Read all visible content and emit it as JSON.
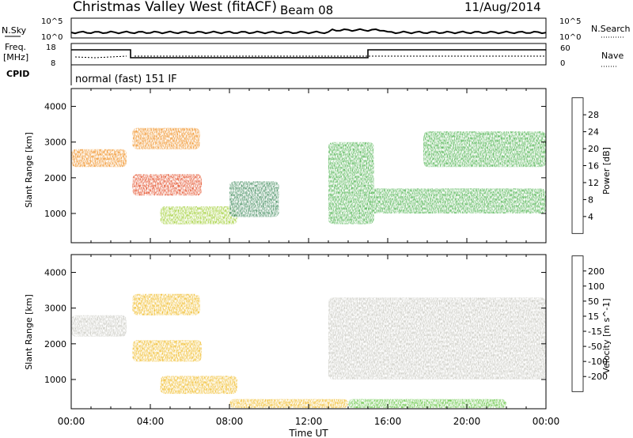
{
  "header": {
    "station": "Christmas Valley West (fitACF)",
    "beam": "Beam 08",
    "date": "11/Aug/2014"
  },
  "left_labels": {
    "nsky": "N.Sky",
    "nsky_top": "10^5",
    "nsky_bottom": "10^0",
    "freq_line1": "Freq.",
    "freq_line2": "[MHz]",
    "freq_top": "18",
    "freq_bottom": "8",
    "cpid": "CPID"
  },
  "right_labels": {
    "nsearch": "N.Search",
    "nsearch_top": "10^5",
    "nsearch_bottom": "10^0",
    "nave": "Nave",
    "nave_top": "60",
    "nave_bottom": "0"
  },
  "cpid_text": "normal (fast) 151 IF",
  "x_axis": {
    "label": "Time UT",
    "ticks": [
      "00:00",
      "04:00",
      "08:00",
      "12:00",
      "16:00",
      "20:00",
      "00:00"
    ]
  },
  "chart_data": [
    {
      "type": "heatmap",
      "panel": "power",
      "ylabel": "Slant Range [km]",
      "xlabel": "Time UT",
      "x_range_hours": [
        0,
        24
      ],
      "ylim": [
        180,
        4500
      ],
      "yticks": [
        1000,
        2000,
        3000,
        4000
      ],
      "colorbar": {
        "label": "Power [dB]",
        "ticks": [
          "4",
          "8",
          "12",
          "16",
          "20",
          "24",
          "28"
        ],
        "colors": [
          "#0a14e6",
          "#2b5ea8",
          "#3d8a5a",
          "#49b04a",
          "#9ccc2c",
          "#f0c21a",
          "#f08a16",
          "#e2421b",
          "#e00000"
        ],
        "range": [
          0,
          30
        ]
      },
      "features": [
        {
          "t": [
            0.0,
            2.8
          ],
          "range_km": [
            2300,
            2800
          ],
          "level_db": 20
        },
        {
          "t": [
            3.1,
            6.6
          ],
          "range_km": [
            1500,
            2100
          ],
          "level_db": 26
        },
        {
          "t": [
            3.1,
            6.5
          ],
          "range_km": [
            2800,
            3400
          ],
          "level_db": 22
        },
        {
          "t": [
            4.5,
            8.4
          ],
          "range_km": [
            700,
            1200
          ],
          "level_db": 14
        },
        {
          "t": [
            8.0,
            10.5
          ],
          "range_km": [
            900,
            1900
          ],
          "level_db": 8
        },
        {
          "t": [
            13.0,
            15.3
          ],
          "range_km": [
            700,
            3000
          ],
          "level_db": 12
        },
        {
          "t": [
            15.0,
            24.0
          ],
          "range_km": [
            1000,
            1700
          ],
          "level_db": 10
        },
        {
          "t": [
            17.8,
            24.0
          ],
          "range_km": [
            2300,
            3300
          ],
          "level_db": 12
        }
      ]
    },
    {
      "type": "heatmap",
      "panel": "velocity",
      "ylabel": "Slant Range [km]",
      "xlabel": "Time UT",
      "x_range_hours": [
        0,
        24
      ],
      "ylim": [
        180,
        4500
      ],
      "yticks": [
        1000,
        2000,
        3000,
        4000
      ],
      "colorbar": {
        "label": "Velocity [m s^-1]",
        "ticks": [
          "200",
          "100",
          "50",
          "15",
          "-15",
          "-50",
          "-100",
          "-200"
        ],
        "colors": [
          "#1a2fc8",
          "#2f6ab2",
          "#3d8c42",
          "#5cc23a",
          "#c8c8c0",
          "#f0b81e",
          "#f08c14",
          "#e8461c",
          "#e00000"
        ],
        "range": [
          -250,
          250
        ]
      },
      "features": [
        {
          "t": [
            0.0,
            2.8
          ],
          "range_km": [
            2200,
            2800
          ],
          "velocity": 0
        },
        {
          "t": [
            3.1,
            6.6
          ],
          "range_km": [
            1500,
            2100
          ],
          "velocity": -30
        },
        {
          "t": [
            3.1,
            6.5
          ],
          "range_km": [
            2800,
            3400
          ],
          "velocity": -60
        },
        {
          "t": [
            4.5,
            8.4
          ],
          "range_km": [
            600,
            1100
          ],
          "velocity": -70
        },
        {
          "t": [
            8.0,
            14.0
          ],
          "range_km": [
            200,
            450
          ],
          "velocity": -60
        },
        {
          "t": [
            14.0,
            22.0
          ],
          "range_km": [
            200,
            450
          ],
          "velocity": 60
        },
        {
          "t": [
            13.0,
            24.0
          ],
          "range_km": [
            1000,
            3300
          ],
          "velocity": 0
        }
      ]
    }
  ]
}
